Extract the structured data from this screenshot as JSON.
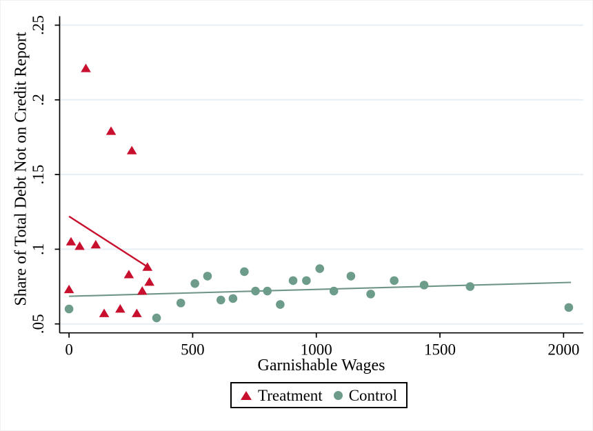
{
  "chart_data": {
    "type": "scatter",
    "title": "",
    "xlabel": "Garnishable Wages",
    "ylabel": "Share of Total Debt Not on Credit Report",
    "xlim": [
      -38,
      2080
    ],
    "ylim": [
      0.044,
      0.256
    ],
    "x_ticks": [
      0,
      500,
      1000,
      1500,
      2000
    ],
    "x_tick_labels": [
      "0",
      "500",
      "1000",
      "1500",
      "2000"
    ],
    "y_ticks": [
      0.05,
      0.1,
      0.15,
      0.2,
      0.25
    ],
    "y_tick_labels": [
      ".05",
      ".1",
      ".15",
      ".2",
      ".25"
    ],
    "grid": "horizontal",
    "legend_position": "bottom-center",
    "series": [
      {
        "name": "Treatment",
        "marker": "triangle",
        "color": "#c8102e",
        "line_color": "#c8102e",
        "points": [
          [
            0,
            0.073
          ],
          [
            8,
            0.105
          ],
          [
            43,
            0.102
          ],
          [
            68,
            0.221
          ],
          [
            108,
            0.103
          ],
          [
            142,
            0.057
          ],
          [
            170,
            0.179
          ],
          [
            207,
            0.06
          ],
          [
            242,
            0.083
          ],
          [
            254,
            0.166
          ],
          [
            274,
            0.057
          ],
          [
            296,
            0.072
          ],
          [
            317,
            0.088
          ],
          [
            325,
            0.078
          ]
        ],
        "fit_line": {
          "x": [
            0,
            310
          ],
          "y": [
            0.122,
            0.089
          ]
        }
      },
      {
        "name": "Control",
        "marker": "circle",
        "color": "#6d9c8b",
        "line_color": "#6f9585",
        "points": [
          [
            0,
            0.06
          ],
          [
            354,
            0.054
          ],
          [
            452,
            0.064
          ],
          [
            509,
            0.077
          ],
          [
            560,
            0.082
          ],
          [
            614,
            0.066
          ],
          [
            663,
            0.067
          ],
          [
            709,
            0.085
          ],
          [
            754,
            0.072
          ],
          [
            802,
            0.072
          ],
          [
            854,
            0.063
          ],
          [
            906,
            0.079
          ],
          [
            960,
            0.079
          ],
          [
            1014,
            0.087
          ],
          [
            1071,
            0.072
          ],
          [
            1140,
            0.082
          ],
          [
            1220,
            0.07
          ],
          [
            1315,
            0.079
          ],
          [
            1436,
            0.076
          ],
          [
            1622,
            0.075
          ],
          [
            2021,
            0.061
          ]
        ],
        "fit_line": {
          "x": [
            0,
            2030
          ],
          "y": [
            0.0685,
            0.0778
          ]
        }
      }
    ],
    "colors": {
      "grid": "#e7eff5",
      "axis": "#000000",
      "background": "#ffffff"
    }
  }
}
